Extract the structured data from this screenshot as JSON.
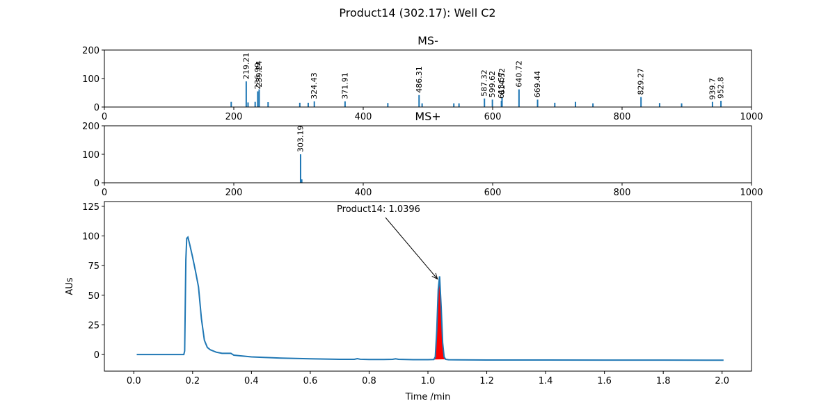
{
  "figure": {
    "title": "Product14 (302.17): Well C2"
  },
  "chart_data": [
    {
      "type": "bar",
      "title": "MS-",
      "xlabel": "",
      "ylabel": "",
      "xlim": [
        0,
        1000
      ],
      "ylim": [
        0,
        200
      ],
      "xticks": [
        0,
        200,
        400,
        600,
        800,
        1000
      ],
      "yticks": [
        0,
        100,
        200
      ],
      "color": "#1f77b4",
      "peaks": [
        {
          "mz": 196.0,
          "intensity": 18
        },
        {
          "mz": 219.21,
          "intensity": 90,
          "label": "219.21"
        },
        {
          "mz": 222.0,
          "intensity": 16
        },
        {
          "mz": 233.0,
          "intensity": 18
        },
        {
          "mz": 236.99,
          "intensity": 55,
          "label": "236.99"
        },
        {
          "mz": 239.24,
          "intensity": 62,
          "label": "239.24"
        },
        {
          "mz": 253.0,
          "intensity": 17
        },
        {
          "mz": 302.0,
          "intensity": 15
        },
        {
          "mz": 315.0,
          "intensity": 15
        },
        {
          "mz": 324.43,
          "intensity": 20,
          "label": "324.43"
        },
        {
          "mz": 371.91,
          "intensity": 20,
          "label": "371.91"
        },
        {
          "mz": 438.0,
          "intensity": 14
        },
        {
          "mz": 486.31,
          "intensity": 42,
          "label": "486.31"
        },
        {
          "mz": 491.0,
          "intensity": 13
        },
        {
          "mz": 540.0,
          "intensity": 13
        },
        {
          "mz": 548.0,
          "intensity": 13
        },
        {
          "mz": 587.32,
          "intensity": 30,
          "label": "587.32"
        },
        {
          "mz": 599.62,
          "intensity": 26,
          "label": "599.62"
        },
        {
          "mz": 613.57,
          "intensity": 22,
          "label": "613.57"
        },
        {
          "mz": 614.52,
          "intensity": 36,
          "label": "614.52"
        },
        {
          "mz": 640.72,
          "intensity": 62,
          "label": "640.72"
        },
        {
          "mz": 669.44,
          "intensity": 26,
          "label": "669.44"
        },
        {
          "mz": 696.0,
          "intensity": 15
        },
        {
          "mz": 728.0,
          "intensity": 18
        },
        {
          "mz": 755.0,
          "intensity": 13
        },
        {
          "mz": 829.27,
          "intensity": 35,
          "label": "829.27"
        },
        {
          "mz": 858.0,
          "intensity": 14
        },
        {
          "mz": 892.0,
          "intensity": 13
        },
        {
          "mz": 939.7,
          "intensity": 18,
          "label": "939.7"
        },
        {
          "mz": 952.8,
          "intensity": 22,
          "label": "952.8"
        }
      ]
    },
    {
      "type": "bar",
      "title": "MS+",
      "xlabel": "",
      "ylabel": "",
      "xlim": [
        0,
        1000
      ],
      "ylim": [
        0,
        200
      ],
      "xticks": [
        0,
        200,
        400,
        600,
        800,
        1000
      ],
      "yticks": [
        0,
        100,
        200
      ],
      "color": "#1f77b4",
      "peaks": [
        {
          "mz": 303.19,
          "intensity": 100,
          "label": "303.19"
        },
        {
          "mz": 305.0,
          "intensity": 12
        }
      ]
    },
    {
      "type": "line",
      "title": "",
      "xlabel": "Time /min",
      "ylabel": "AUs",
      "xlim": [
        -0.1,
        2.1
      ],
      "ylim": [
        -14,
        129
      ],
      "xticks": [
        0.0,
        0.2,
        0.4,
        0.6,
        0.8,
        1.0,
        1.2,
        1.4,
        1.6,
        1.8,
        2.0
      ],
      "xtick_labels": [
        "0.0",
        "0.2",
        "0.4",
        "0.6",
        "0.8",
        "1.0",
        "1.2",
        "1.4",
        "1.6",
        "1.8",
        "2.0"
      ],
      "yticks": [
        0,
        25,
        50,
        75,
        100,
        125
      ],
      "color": "#1f77b4",
      "fill_color": "#ff0000",
      "series": [
        {
          "x": [
            0.01,
            0.05,
            0.1,
            0.15,
            0.17,
            0.173,
            0.177,
            0.18,
            0.184,
            0.19,
            0.2,
            0.21,
            0.22,
            0.23,
            0.24,
            0.25,
            0.26,
            0.28,
            0.3,
            0.33,
            0.34,
            0.36,
            0.4,
            0.45,
            0.5,
            0.55,
            0.6,
            0.65,
            0.7,
            0.75,
            0.76,
            0.77,
            0.8,
            0.85,
            0.88,
            0.89,
            0.9,
            0.95,
            1.0,
            1.02,
            1.025,
            1.03,
            1.035,
            1.0396,
            1.045,
            1.05,
            1.055,
            1.06,
            1.07,
            1.1,
            1.2,
            1.4,
            1.6,
            1.8,
            2.0,
            2.005
          ],
          "y": [
            0,
            0,
            0,
            0,
            0,
            3,
            80,
            98,
            99,
            93,
            82,
            70,
            57,
            30,
            12,
            6,
            4,
            2,
            1,
            1,
            -0.5,
            -1,
            -2,
            -2.5,
            -3,
            -3.3,
            -3.6,
            -3.8,
            -4,
            -4,
            -3.5,
            -4,
            -4.2,
            -4.2,
            -4,
            -3.6,
            -4,
            -4.3,
            -4.3,
            -4.2,
            -2,
            20,
            55,
            66,
            40,
            10,
            -2,
            -4,
            -4.4,
            -4.5,
            -4.6,
            -4.6,
            -4.7,
            -4.7,
            -4.8,
            -4.8
          ]
        }
      ],
      "filled_peak": {
        "start": 1.02,
        "end": 1.06
      },
      "annotation": {
        "text": "Product14: 1.0396",
        "x": 1.0396,
        "y": 66
      }
    }
  ]
}
